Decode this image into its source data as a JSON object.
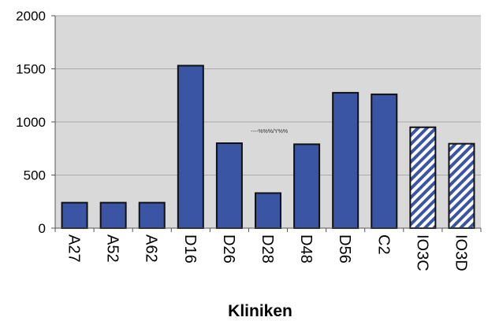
{
  "chart_data": {
    "type": "bar",
    "categories": [
      "A27",
      "A52",
      "A62",
      "D16",
      "D26",
      "D28",
      "D48",
      "D56",
      "C2",
      "IO3C",
      "IO3D"
    ],
    "values": [
      240,
      240,
      240,
      1530,
      800,
      330,
      790,
      1275,
      1260,
      950,
      795
    ],
    "patterns": [
      "solid",
      "solid",
      "solid",
      "solid",
      "solid",
      "solid",
      "solid",
      "solid",
      "solid",
      "hatched",
      "hatched"
    ],
    "xlabel": "Kliniken",
    "ylabel": "",
    "ylim": [
      0,
      2000
    ],
    "yticks": [
      0,
      500,
      1000,
      1500,
      2000
    ],
    "grid": true,
    "annotation": "----%%%/Y%%",
    "colors": {
      "bar_fill": "#3a55a3",
      "bar_stroke": "#111111",
      "plot_bg": "#d9d9d9",
      "grid": "#a9a9a9"
    }
  }
}
